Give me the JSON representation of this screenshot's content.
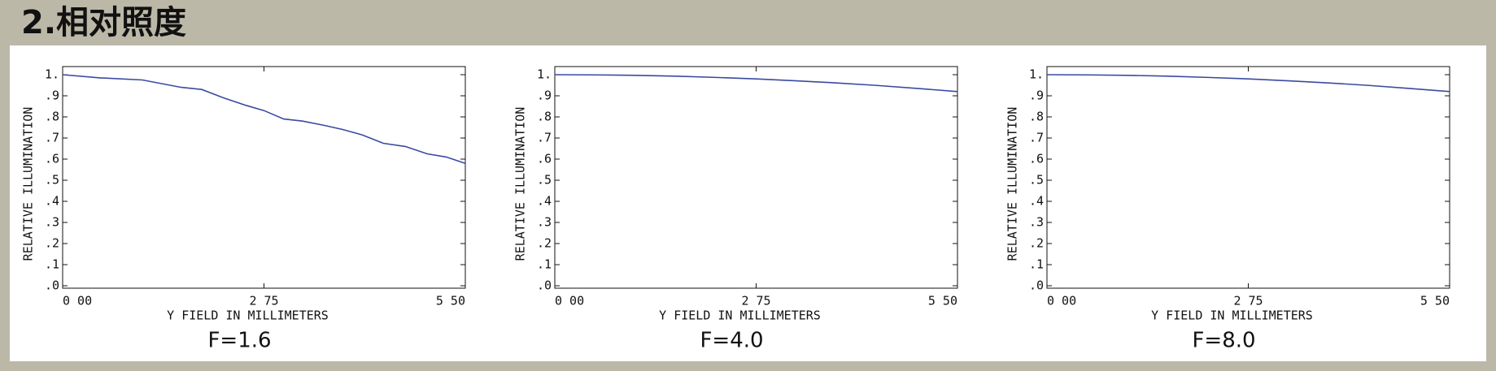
{
  "header": {
    "title": "2.相对照度"
  },
  "chart_data": [
    {
      "type": "line",
      "caption": "F=1.6",
      "ylabel": "RELATIVE ILLUMINATION",
      "xlabel": "Y FIELD IN MILLIMETERS",
      "x": [
        0,
        0.51,
        1.09,
        1.62,
        1.9,
        2.2,
        2.5,
        2.75,
        3.02,
        3.28,
        3.57,
        3.83,
        4.09,
        4.38,
        4.68,
        4.98,
        5.24,
        5.5
      ],
      "series": [
        {
          "color": "#3a4aa0",
          "values": [
            1.0,
            0.985,
            0.975,
            0.94,
            0.93,
            0.89,
            0.855,
            0.83,
            0.79,
            0.78,
            0.76,
            0.74,
            0.715,
            0.675,
            0.66,
            0.625,
            0.61,
            0.58
          ]
        }
      ],
      "xlim": [
        0,
        5.5
      ],
      "xticks": [
        {
          "value": 0,
          "label": "0 00"
        },
        {
          "value": 2.75,
          "label": "2 75"
        },
        {
          "value": 5.5,
          "label": "5 50"
        }
      ],
      "ylim": [
        0,
        1
      ],
      "yticks": [
        {
          "value": 0,
          "label": ".0"
        },
        {
          "value": 0.1,
          "label": ".1"
        },
        {
          "value": 0.2,
          "label": ".2"
        },
        {
          "value": 0.3,
          "label": ".3"
        },
        {
          "value": 0.4,
          "label": ".4"
        },
        {
          "value": 0.5,
          "label": ".5"
        },
        {
          "value": 0.6,
          "label": ".6"
        },
        {
          "value": 0.7,
          "label": ".7"
        },
        {
          "value": 0.8,
          "label": ".8"
        },
        {
          "value": 0.9,
          "label": ".9"
        },
        {
          "value": 1,
          "label": "1."
        }
      ]
    },
    {
      "type": "line",
      "caption": "F=4.0",
      "ylabel": "RELATIVE ILLUMINATION",
      "xlabel": "Y FIELD IN MILLIMETERS",
      "x": [
        0,
        0.55,
        1.1,
        1.65,
        2.2,
        2.75,
        3.3,
        3.85,
        4.4,
        4.95,
        5.5
      ],
      "series": [
        {
          "color": "#3a4aa0",
          "values": [
            1.0,
            0.999,
            0.997,
            0.993,
            0.987,
            0.98,
            0.971,
            0.961,
            0.949,
            0.935,
            0.92
          ]
        }
      ],
      "xlim": [
        0,
        5.5
      ],
      "xticks": [
        {
          "value": 0,
          "label": "0 00"
        },
        {
          "value": 2.75,
          "label": "2 75"
        },
        {
          "value": 5.5,
          "label": "5 50"
        }
      ],
      "ylim": [
        0,
        1
      ],
      "yticks": [
        {
          "value": 0,
          "label": ".0"
        },
        {
          "value": 0.1,
          "label": ".1"
        },
        {
          "value": 0.2,
          "label": ".2"
        },
        {
          "value": 0.3,
          "label": ".3"
        },
        {
          "value": 0.4,
          "label": ".4"
        },
        {
          "value": 0.5,
          "label": ".5"
        },
        {
          "value": 0.6,
          "label": ".6"
        },
        {
          "value": 0.7,
          "label": ".7"
        },
        {
          "value": 0.8,
          "label": ".8"
        },
        {
          "value": 0.9,
          "label": ".9"
        },
        {
          "value": 1,
          "label": "1."
        }
      ]
    },
    {
      "type": "line",
      "caption": "F=8.0",
      "ylabel": "RELATIVE ILLUMINATION",
      "xlabel": "Y FIELD IN MILLIMETERS",
      "x": [
        0,
        0.55,
        1.1,
        1.65,
        2.2,
        2.75,
        3.3,
        3.85,
        4.4,
        4.95,
        5.5
      ],
      "series": [
        {
          "color": "#3a4aa0",
          "values": [
            1.0,
            0.999,
            0.997,
            0.993,
            0.987,
            0.98,
            0.971,
            0.961,
            0.949,
            0.935,
            0.92
          ]
        }
      ],
      "xlim": [
        0,
        5.5
      ],
      "xticks": [
        {
          "value": 0,
          "label": "0 00"
        },
        {
          "value": 2.75,
          "label": "2 75"
        },
        {
          "value": 5.5,
          "label": "5 50"
        }
      ],
      "ylim": [
        0,
        1
      ],
      "yticks": [
        {
          "value": 0,
          "label": ".0"
        },
        {
          "value": 0.1,
          "label": ".1"
        },
        {
          "value": 0.2,
          "label": ".2"
        },
        {
          "value": 0.3,
          "label": ".3"
        },
        {
          "value": 0.4,
          "label": ".4"
        },
        {
          "value": 0.5,
          "label": ".5"
        },
        {
          "value": 0.6,
          "label": ".6"
        },
        {
          "value": 0.7,
          "label": ".7"
        },
        {
          "value": 0.8,
          "label": ".8"
        },
        {
          "value": 0.9,
          "label": ".9"
        },
        {
          "value": 1,
          "label": "1."
        }
      ]
    }
  ]
}
